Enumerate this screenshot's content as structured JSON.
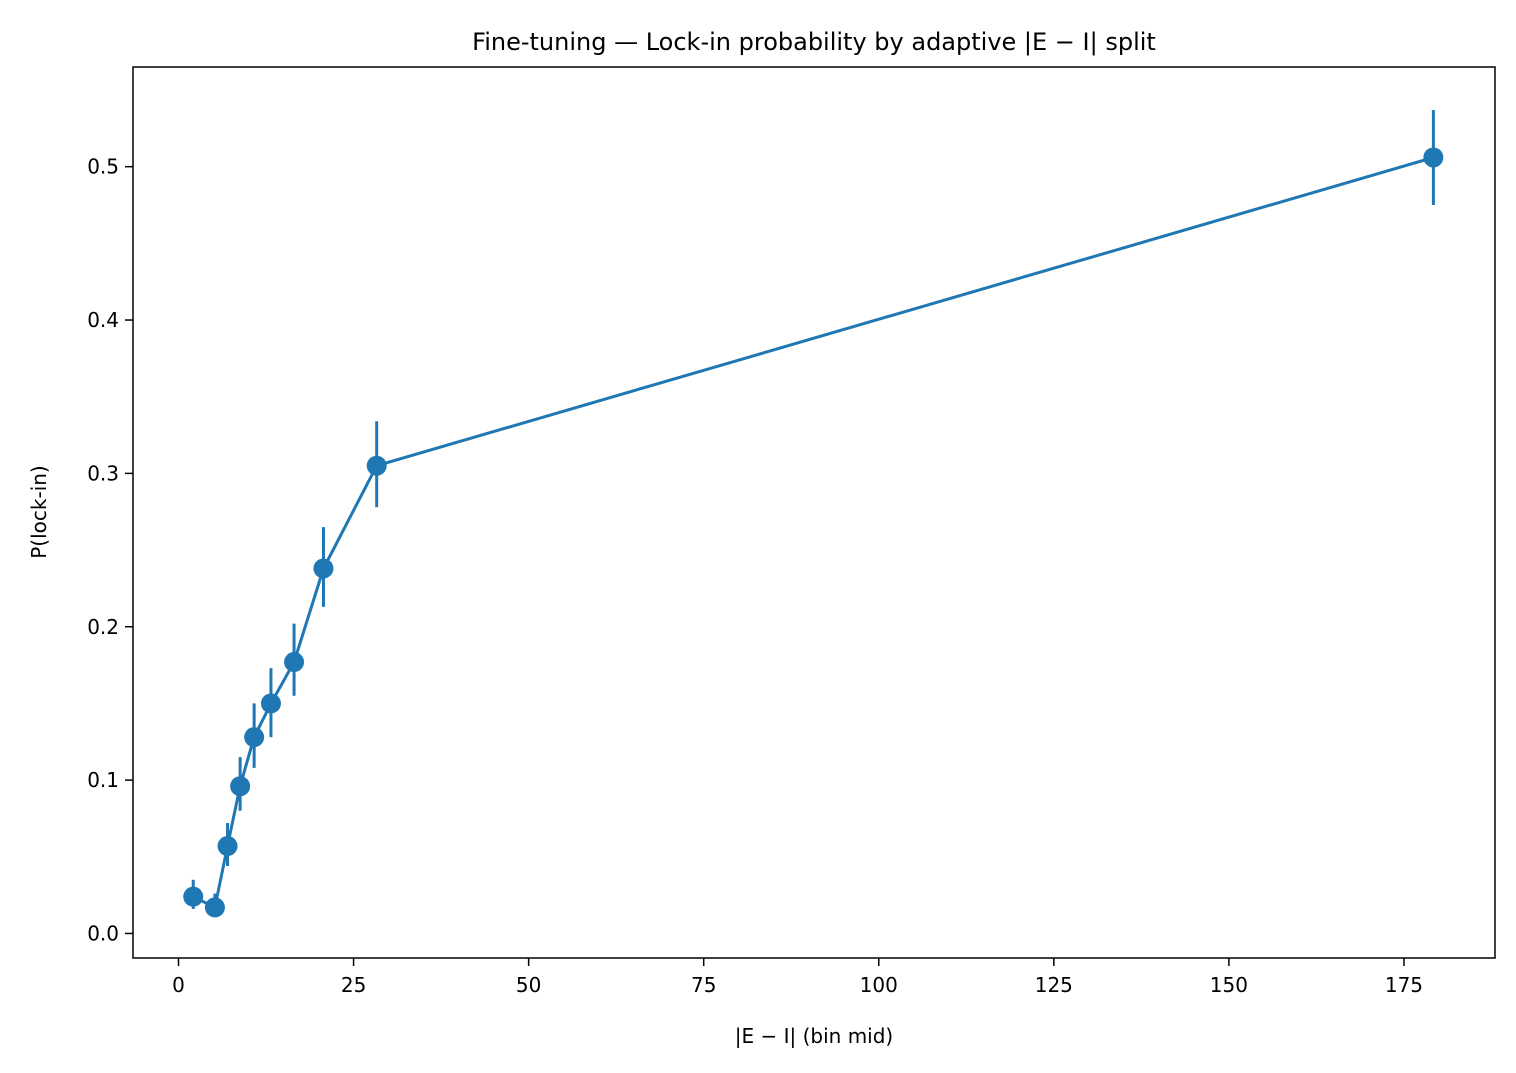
{
  "chart_data": {
    "type": "line",
    "title": "Fine-tuning — Lock-in probability by adaptive |E − I| split",
    "xlabel": "|E − I| (bin mid)",
    "ylabel": "P(lock-in)",
    "xlim": [
      -6.5,
      188
    ],
    "ylim": [
      -0.016,
      0.565
    ],
    "xticks": [
      0,
      25,
      50,
      75,
      100,
      125,
      150,
      175
    ],
    "yticks": [
      0.0,
      0.1,
      0.2,
      0.3,
      0.4,
      0.5
    ],
    "xtick_labels": [
      "0",
      "25",
      "50",
      "75",
      "100",
      "125",
      "150",
      "175"
    ],
    "ytick_labels": [
      "0.0",
      "0.1",
      "0.2",
      "0.3",
      "0.4",
      "0.5"
    ],
    "grid": false,
    "color": "#1f77b4",
    "series": [
      {
        "x": [
          2.1,
          5.2,
          7.0,
          8.8,
          10.8,
          13.2,
          16.5,
          20.7,
          28.3,
          179.2
        ],
        "y": [
          0.024,
          0.017,
          0.057,
          0.096,
          0.128,
          0.15,
          0.177,
          0.238,
          0.305,
          0.506
        ],
        "err_low": [
          0.016,
          0.011,
          0.044,
          0.08,
          0.108,
          0.128,
          0.155,
          0.213,
          0.278,
          0.475
        ],
        "err_high": [
          0.035,
          0.026,
          0.072,
          0.115,
          0.15,
          0.173,
          0.202,
          0.265,
          0.334,
          0.537
        ]
      }
    ]
  }
}
